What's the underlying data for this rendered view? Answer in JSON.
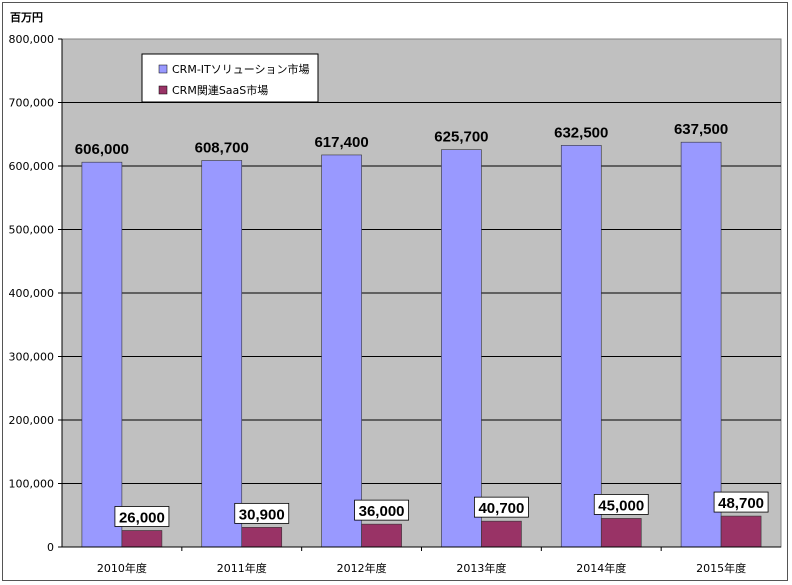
{
  "chart_data": {
    "type": "bar",
    "ylabel": "百万円",
    "ylim": [
      0,
      800000
    ],
    "ytick_step": 100000,
    "ytick_labels": [
      "0",
      "100,000",
      "200,000",
      "300,000",
      "400,000",
      "500,000",
      "600,000",
      "700,000",
      "800,000"
    ],
    "grid": true,
    "legend_position": "top-left",
    "categories": [
      "2010年度",
      "2011年度",
      "2012年度",
      "2013年度",
      "2014年度",
      "2015年度"
    ],
    "series": [
      {
        "name": "CRM-ITソリューション市場",
        "color": "#9999ff",
        "values": [
          606000,
          608700,
          617400,
          625700,
          632500,
          637500
        ],
        "labels": [
          "606,000",
          "608,700",
          "617,400",
          "625,700",
          "632,500",
          "637,500"
        ]
      },
      {
        "name": "CRM関連SaaS市場",
        "color": "#993366",
        "values": [
          26000,
          30900,
          36000,
          40700,
          45000,
          48700
        ],
        "labels": [
          "26,000",
          "30,900",
          "36,000",
          "40,700",
          "45,000",
          "48,700"
        ]
      }
    ],
    "plot_background": "#c0c0c0"
  }
}
